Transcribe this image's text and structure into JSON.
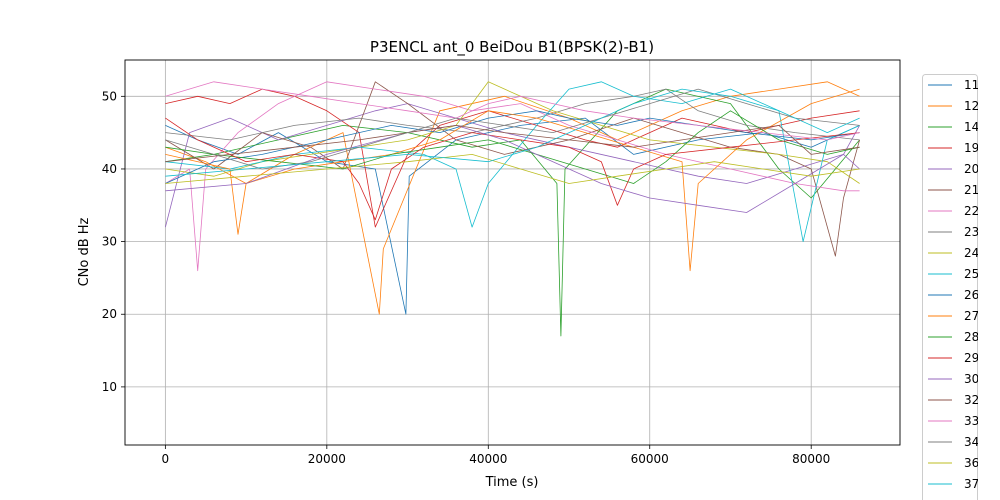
{
  "chart_data": {
    "type": "line",
    "title": "P3ENCL ant_0 BeiDou B1(BPSK(2)-B1)",
    "xlabel": "Time (s)",
    "ylabel": "CNo dB Hz",
    "xlim": [
      -5000,
      91000
    ],
    "ylim": [
      2,
      55
    ],
    "xticks": [
      0,
      20000,
      40000,
      60000,
      80000
    ],
    "yticks": [
      10,
      20,
      30,
      40,
      50
    ],
    "grid": true,
    "legend_position": "right, outside plot",
    "series": [
      {
        "name": "11",
        "color": "#1f77b4",
        "x": [
          0,
          4000,
          9000,
          14000,
          20000,
          26000,
          29800,
          30200,
          36000,
          44000,
          52000,
          58000,
          66000,
          74000,
          80000,
          86000
        ],
        "y": [
          46,
          44,
          42,
          45,
          41,
          40,
          20,
          39,
          44,
          46,
          47,
          42,
          44,
          45,
          43,
          46
        ]
      },
      {
        "name": "12",
        "color": "#ff7f0e",
        "x": [
          0,
          5000,
          10000,
          16000,
          22000,
          26500,
          27000,
          34000,
          42000,
          50000,
          56000,
          64000,
          70000,
          76000,
          82000,
          86000
        ],
        "y": [
          43,
          41,
          38,
          42,
          45,
          20,
          29,
          48,
          50,
          47,
          44,
          48,
          50,
          51,
          52,
          50
        ]
      },
      {
        "name": "14",
        "color": "#2ca02c",
        "x": [
          0,
          6000,
          14000,
          22000,
          30000,
          38000,
          44000,
          48500,
          49000,
          49500,
          56000,
          62000,
          70000,
          76000,
          80000,
          86000
        ],
        "y": [
          41,
          42,
          44,
          46,
          45,
          43,
          44,
          38,
          17,
          40,
          48,
          51,
          49,
          40,
          36,
          44
        ]
      },
      {
        "name": "19",
        "color": "#d62728",
        "x": [
          0,
          4000,
          8000,
          12000,
          16000,
          20000,
          24000,
          26000,
          30000,
          34000,
          40000,
          46000,
          52000,
          56000,
          60000,
          64000,
          72000,
          80000,
          86000
        ],
        "y": [
          49,
          50,
          49,
          51,
          50,
          48,
          45,
          32,
          42,
          46,
          48,
          46,
          44,
          43,
          45,
          47,
          45,
          47,
          48
        ]
      },
      {
        "name": "20",
        "color": "#9467bd",
        "x": [
          0,
          3000,
          8000,
          14000,
          20000,
          26000,
          30000,
          36000,
          42000,
          50000,
          58000,
          66000,
          72000,
          78000,
          84000,
          86000
        ],
        "y": [
          32,
          45,
          47,
          44,
          46,
          48,
          49,
          47,
          45,
          43,
          41,
          39,
          38,
          40,
          42,
          46
        ]
      },
      {
        "name": "21",
        "color": "#8c564b",
        "x": [
          0,
          6000,
          12000,
          18000,
          22000,
          26000,
          30000,
          36000,
          42000,
          50000,
          58000,
          64000,
          70000,
          76000,
          80000,
          83000,
          84000,
          86000
        ],
        "y": [
          44,
          40,
          45,
          43,
          40,
          52,
          49,
          44,
          42,
          44,
          47,
          45,
          43,
          42,
          40,
          28,
          36,
          44
        ]
      },
      {
        "name": "22",
        "color": "#e377c2",
        "x": [
          0,
          3000,
          4000,
          5000,
          9000,
          14000,
          20000,
          26000,
          32000,
          38000,
          44000,
          50000,
          56000,
          62000,
          70000,
          78000,
          84000,
          86000
        ],
        "y": [
          38,
          40,
          26,
          40,
          45,
          49,
          52,
          51,
          50,
          48,
          49,
          46,
          44,
          42,
          40,
          38,
          37,
          37
        ]
      },
      {
        "name": "23",
        "color": "#7f7f7f",
        "x": [
          0,
          8000,
          16000,
          24000,
          30000,
          38000,
          46000,
          52000,
          58000,
          62000,
          66000,
          72000,
          78000,
          86000
        ],
        "y": [
          45,
          44,
          46,
          47,
          46,
          45,
          47,
          49,
          50,
          51,
          48,
          46,
          45,
          44
        ]
      },
      {
        "name": "24",
        "color": "#bcbd22",
        "x": [
          0,
          6000,
          12000,
          18000,
          24000,
          30000,
          36000,
          40000,
          44000,
          48000,
          54000,
          60000,
          68000,
          76000,
          82000,
          86000
        ],
        "y": [
          40,
          39,
          41,
          42,
          43,
          44,
          46,
          52,
          50,
          48,
          46,
          44,
          43,
          42,
          41,
          38
        ]
      },
      {
        "name": "25",
        "color": "#17becf",
        "x": [
          0,
          8000,
          16000,
          24000,
          32000,
          36000,
          38000,
          40000,
          46000,
          50000,
          54000,
          58000,
          64000,
          70000,
          76000,
          79000,
          82000,
          86000
        ],
        "y": [
          41,
          40,
          42,
          43,
          42,
          40,
          32,
          38,
          46,
          51,
          52,
          50,
          49,
          51,
          48,
          30,
          44,
          46
        ]
      },
      {
        "name": "26",
        "color": "#1f77b4",
        "x": [
          0,
          6000,
          12000,
          20000,
          28000,
          34000,
          40000,
          46000,
          50000,
          56000,
          60000,
          66000,
          72000,
          80000,
          86000
        ],
        "y": [
          38,
          41,
          42,
          44,
          46,
          45,
          47,
          48,
          47,
          46,
          47,
          46,
          45,
          44,
          45
        ]
      },
      {
        "name": "27",
        "color": "#ff7f0e",
        "x": [
          0,
          8000,
          9000,
          10000,
          16000,
          22000,
          28000,
          34000,
          40000,
          46000,
          52000,
          58000,
          64000,
          65000,
          66000,
          72000,
          80000,
          86000
        ],
        "y": [
          42,
          40,
          31,
          38,
          40,
          41,
          42,
          44,
          48,
          47,
          45,
          43,
          41,
          26,
          38,
          44,
          49,
          51
        ]
      },
      {
        "name": "28",
        "color": "#2ca02c",
        "x": [
          0,
          6000,
          14000,
          22000,
          28000,
          34000,
          40000,
          46000,
          52000,
          58000,
          62000,
          66000,
          70000,
          76000,
          82000,
          86000
        ],
        "y": [
          43,
          42,
          41,
          40,
          42,
          43,
          44,
          42,
          40,
          38,
          41,
          45,
          48,
          44,
          42,
          43
        ]
      },
      {
        "name": "29",
        "color": "#d62728",
        "x": [
          0,
          4000,
          10000,
          16000,
          22000,
          24000,
          26000,
          28000,
          32000,
          38000,
          44000,
          50000,
          54000,
          56000,
          58000,
          62000,
          70000,
          78000,
          86000
        ],
        "y": [
          47,
          44,
          41,
          42,
          41,
          38,
          33,
          40,
          43,
          45,
          44,
          43,
          41,
          35,
          40,
          42,
          43,
          44,
          45
        ]
      },
      {
        "name": "30",
        "color": "#9467bd",
        "x": [
          0,
          10000,
          20000,
          30000,
          36000,
          42000,
          48000,
          54000,
          60000,
          66000,
          72000,
          78000,
          84000,
          86000
        ],
        "y": [
          37,
          38,
          42,
          45,
          46,
          44,
          41,
          38,
          36,
          35,
          34,
          38,
          42,
          40
        ]
      },
      {
        "name": "32",
        "color": "#8c564b",
        "x": [
          0,
          8000,
          16000,
          24000,
          30000,
          36000,
          42000,
          50000,
          58000,
          64000,
          70000,
          76000,
          80000,
          86000
        ],
        "y": [
          41,
          42,
          43,
          44,
          45,
          46,
          45,
          44,
          43,
          44,
          45,
          46,
          42,
          43
        ]
      },
      {
        "name": "33",
        "color": "#e377c2",
        "x": [
          0,
          6000,
          12000,
          18000,
          24000,
          30000,
          36000,
          40000,
          44000,
          48000,
          52000,
          58000,
          66000,
          74000,
          82000,
          86000
        ],
        "y": [
          50,
          52,
          51,
          50,
          49,
          48,
          47,
          49,
          50,
          49,
          48,
          47,
          46,
          45,
          44,
          45
        ]
      },
      {
        "name": "34",
        "color": "#7f7f7f",
        "x": [
          0,
          6000,
          12000,
          18000,
          24000,
          30000,
          36000,
          42000,
          48000,
          54000,
          60000,
          66000,
          72000,
          78000,
          86000
        ],
        "y": [
          44,
          42,
          40,
          41,
          43,
          45,
          47,
          46,
          45,
          47,
          49,
          51,
          49,
          47,
          46
        ]
      },
      {
        "name": "36",
        "color": "#bcbd22",
        "x": [
          0,
          10000,
          20000,
          30000,
          38000,
          44000,
          50000,
          56000,
          62000,
          68000,
          74000,
          80000,
          86000
        ],
        "y": [
          38,
          39,
          40,
          41,
          42,
          40,
          38,
          39,
          40,
          41,
          40,
          39,
          40
        ]
      },
      {
        "name": "37",
        "color": "#17becf",
        "x": [
          0,
          10000,
          20000,
          30000,
          40000,
          46000,
          52000,
          58000,
          64000,
          70000,
          76000,
          82000,
          86000
        ],
        "y": [
          39,
          40,
          41,
          42,
          41,
          43,
          46,
          49,
          51,
          50,
          48,
          45,
          47
        ]
      }
    ]
  }
}
